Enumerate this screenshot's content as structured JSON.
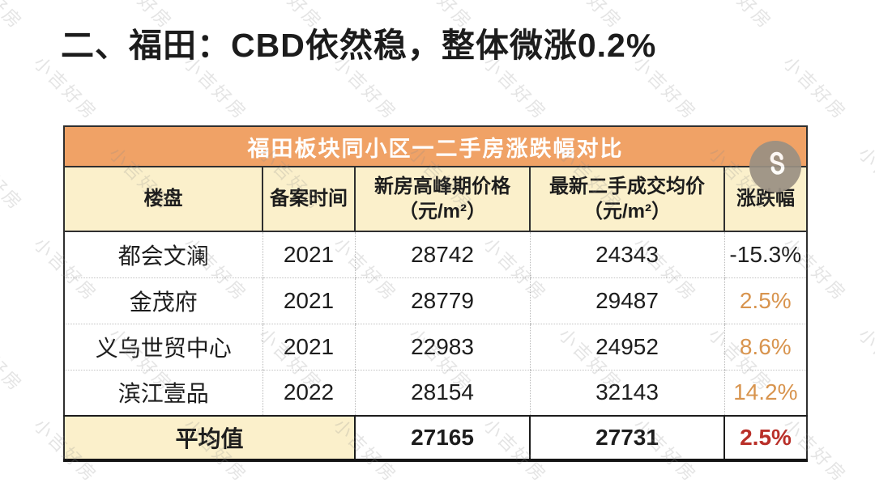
{
  "page": {
    "title": "二、福田：CBD依然稳，整体微涨0.2%"
  },
  "table": {
    "banner": "福田板块同小区一二手房涨跌幅对比",
    "columns": {
      "property": "楼盘",
      "filing_year": "备案时间",
      "new_peak_price": "新房高峰期价格",
      "new_peak_price_unit": "（元/m²）",
      "resale_avg_price": "最新二手成交均价",
      "resale_avg_price_unit": "（元/m²）",
      "change": "涨跌幅"
    },
    "rows": [
      {
        "name": "都会文澜",
        "year": "2021",
        "new_price": "28742",
        "resale_price": "24343",
        "change": "-15.3%"
      },
      {
        "name": "金茂府",
        "year": "2021",
        "new_price": "28779",
        "resale_price": "29487",
        "change": "2.5%"
      },
      {
        "name": "义乌世贸中心",
        "year": "2021",
        "new_price": "22983",
        "resale_price": "24952",
        "change": "8.6%"
      },
      {
        "name": "滨江壹品",
        "year": "2022",
        "new_price": "28154",
        "resale_price": "32143",
        "change": "14.2%"
      }
    ],
    "summary": {
      "label": "平均值",
      "new_price": "27165",
      "resale_price": "27731",
      "change": "2.5%"
    }
  },
  "watermark": {
    "text": "小吉好房"
  },
  "icons": {
    "share": "share-icon"
  },
  "colors": {
    "banner_bg": "#f0a266",
    "header_bg": "#fbf0cb",
    "up": "#d8944e",
    "down": "#1f1f1f",
    "avg_change": "#b93029",
    "border_dark": "#2f2f2f",
    "watermark": "#8a8a8a",
    "share_circle": "#9a9083"
  }
}
